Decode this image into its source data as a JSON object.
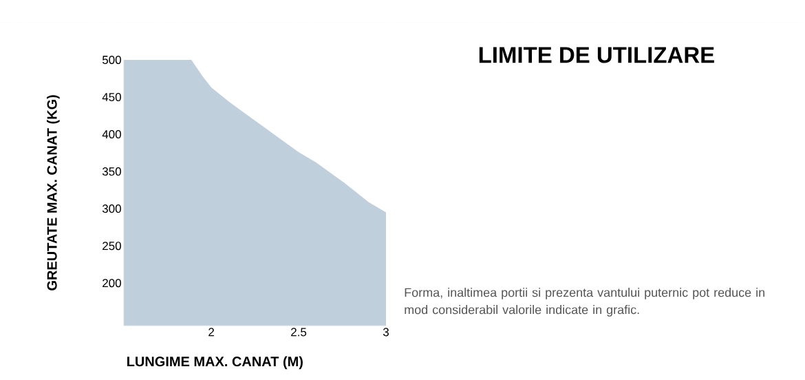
{
  "chart_data": {
    "type": "area",
    "title": "LIMITE DE UTILIZARE",
    "xlabel": "LUNGIME MAX. CANAT (M)",
    "ylabel": "GREUTATE MAX. CANAT (KG)",
    "annotations": [
      "Forma, inaltimea portii si prezenta vantului puternic pot reduce in mod considerabil valorile indicate in grafic."
    ],
    "x": [
      1.5,
      1.886,
      1.95,
      2.0,
      2.1,
      2.17,
      2.3,
      2.37,
      2.5,
      2.6,
      2.76,
      2.9,
      3.0
    ],
    "values": [
      500,
      500,
      478,
      463,
      444,
      432,
      410,
      398,
      376,
      362,
      335,
      309,
      295
    ],
    "color": "#bfd0dc",
    "xlim": [
      1.5,
      3
    ],
    "ylim": [
      143,
      500
    ],
    "xticks": [
      2,
      2.5,
      3
    ],
    "yticks": [
      200,
      250,
      300,
      350,
      400,
      450,
      500
    ]
  }
}
